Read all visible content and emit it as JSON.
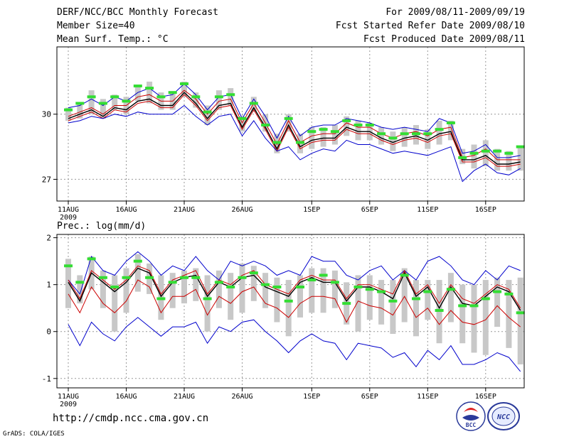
{
  "header": {
    "title": "DERF/NCC/BCC Monthly Forecast",
    "member_size": "Member Size=40",
    "variable": "Mean Surf. Temp.: °C",
    "period": "For 2009/08/11-2009/09/19",
    "fcst_started": "Fcst Started Refer Date 2009/08/10",
    "fcst_produced": "Fcst Produced Date 2009/08/11"
  },
  "footer": {
    "url": "http://cmdp.ncc.cma.gov.cn",
    "grads": "GrADS: COLA/IGES",
    "logo_bcc_text": "BCC",
    "logo_ncc_text": "NCC"
  },
  "colors": {
    "envelope": "#0000cc",
    "spread": "#cc0000",
    "mean": "#000000",
    "observed_bar": "#33dd33",
    "box": "#c8c8c8",
    "grid": "#999999"
  },
  "chart_data": [
    {
      "type": "line",
      "title": "Mean Surf. Temp.: °C",
      "x_tick_labels": [
        "11AUG",
        "16AUG",
        "21AUG",
        "26AUG",
        "1SEP",
        "6SEP",
        "11SEP",
        "16SEP"
      ],
      "x_year_label": "2009",
      "day_index": [
        0,
        1,
        2,
        3,
        4,
        5,
        6,
        7,
        8,
        9,
        10,
        11,
        12,
        13,
        14,
        15,
        16,
        17,
        18,
        19,
        20,
        21,
        22,
        23,
        24,
        25,
        26,
        27,
        28,
        29,
        30,
        31,
        32,
        33,
        34,
        35,
        36,
        37,
        38,
        39
      ],
      "ylim": [
        26.0,
        33.1
      ],
      "y_ticks": [
        27,
        30
      ],
      "grid": true,
      "series": [
        {
          "name": "max",
          "values": [
            30.3,
            30.4,
            30.7,
            30.4,
            30.8,
            30.6,
            31.0,
            31.2,
            30.8,
            30.9,
            31.4,
            30.9,
            30.2,
            30.8,
            30.9,
            29.8,
            30.7,
            29.9,
            28.9,
            29.9,
            29.0,
            29.4,
            29.5,
            29.5,
            29.8,
            29.7,
            29.6,
            29.4,
            29.3,
            29.4,
            29.3,
            29.2,
            29.8,
            29.6,
            28.2,
            28.3,
            28.6,
            28.0,
            28.0,
            28.1
          ]
        },
        {
          "name": "upper",
          "values": [
            29.9,
            30.1,
            30.3,
            30.0,
            30.4,
            30.4,
            30.8,
            30.9,
            30.6,
            30.6,
            31.1,
            30.7,
            30.0,
            30.6,
            30.7,
            29.6,
            30.5,
            29.6,
            28.6,
            29.7,
            28.7,
            29.0,
            29.1,
            29.1,
            29.6,
            29.4,
            29.4,
            29.1,
            28.9,
            29.1,
            29.2,
            29.0,
            29.3,
            29.4,
            28.0,
            28.1,
            28.4,
            27.9,
            27.9,
            27.9
          ]
        },
        {
          "name": "mean",
          "values": [
            29.8,
            30.0,
            30.2,
            29.9,
            30.3,
            30.2,
            30.6,
            30.7,
            30.4,
            30.4,
            31.0,
            30.5,
            29.8,
            30.4,
            30.5,
            29.4,
            30.3,
            29.4,
            28.4,
            29.5,
            28.5,
            28.8,
            28.9,
            28.9,
            29.4,
            29.2,
            29.2,
            28.9,
            28.7,
            28.9,
            29.0,
            28.8,
            29.1,
            29.2,
            27.9,
            27.9,
            28.1,
            27.7,
            27.7,
            27.8
          ]
        },
        {
          "name": "lower",
          "values": [
            29.7,
            29.9,
            30.1,
            29.8,
            30.2,
            30.1,
            30.5,
            30.6,
            30.3,
            30.3,
            30.9,
            30.4,
            29.7,
            30.3,
            30.4,
            29.3,
            30.2,
            29.3,
            28.3,
            29.4,
            28.4,
            28.7,
            28.8,
            28.8,
            29.3,
            29.1,
            29.1,
            28.8,
            28.6,
            28.8,
            28.9,
            28.7,
            29.0,
            29.1,
            27.8,
            27.8,
            28.0,
            27.6,
            27.6,
            27.7
          ]
        },
        {
          "name": "min",
          "values": [
            29.6,
            29.7,
            29.9,
            29.8,
            30.0,
            29.9,
            30.1,
            30.0,
            30.0,
            30.0,
            30.4,
            29.9,
            29.5,
            29.9,
            30.0,
            29.0,
            29.7,
            28.9,
            28.3,
            28.5,
            27.9,
            28.2,
            28.4,
            28.3,
            28.8,
            28.6,
            28.6,
            28.4,
            28.2,
            28.3,
            28.2,
            28.1,
            28.3,
            28.5,
            26.9,
            27.4,
            27.7,
            27.3,
            27.2,
            27.5
          ]
        }
      ],
      "observed": [
        30.2,
        30.5,
        30.8,
        30.5,
        30.8,
        30.6,
        31.3,
        31.2,
        30.8,
        31.0,
        31.4,
        30.8,
        30.1,
        30.8,
        30.9,
        29.8,
        30.5,
        29.5,
        28.7,
        29.8,
        28.7,
        29.2,
        29.3,
        29.2,
        29.7,
        29.5,
        29.5,
        29.1,
        28.9,
        29.1,
        29.1,
        29.1,
        29.3,
        29.6,
        28.0,
        28.2,
        28.3,
        28.3,
        28.2,
        28.5
      ],
      "box_top": [
        30.3,
        30.5,
        31.1,
        30.7,
        30.9,
        30.8,
        31.3,
        31.5,
        31.0,
        31.0,
        31.5,
        31.0,
        30.4,
        31.1,
        31.2,
        29.9,
        30.8,
        30.0,
        29.1,
        30.0,
        29.1,
        29.4,
        29.4,
        29.5,
        29.9,
        29.7,
        29.6,
        29.4,
        29.2,
        29.4,
        29.5,
        29.3,
        29.7,
        29.7,
        28.4,
        28.6,
        28.8,
        28.4,
        28.3,
        28.5
      ],
      "box_bottom": [
        29.7,
        29.8,
        30.0,
        29.8,
        30.2,
        30.0,
        30.6,
        30.5,
        30.2,
        30.2,
        30.8,
        30.3,
        29.5,
        30.2,
        30.4,
        29.2,
        30.1,
        29.2,
        28.2,
        29.2,
        28.2,
        28.4,
        28.5,
        28.6,
        29.0,
        28.8,
        28.8,
        28.6,
        28.3,
        28.5,
        28.6,
        28.4,
        28.6,
        28.8,
        27.7,
        27.5,
        27.6,
        27.4,
        27.4,
        27.4
      ]
    },
    {
      "type": "line",
      "title": "Prec.: log(mm/d)",
      "x_tick_labels": [
        "11AUG",
        "16AUG",
        "21AUG",
        "26AUG",
        "1SEP",
        "6SEP",
        "11SEP",
        "16SEP"
      ],
      "x_year_label": "2009",
      "day_index": [
        0,
        1,
        2,
        3,
        4,
        5,
        6,
        7,
        8,
        9,
        10,
        11,
        12,
        13,
        14,
        15,
        16,
        17,
        18,
        19,
        20,
        21,
        22,
        23,
        24,
        25,
        26,
        27,
        28,
        29,
        30,
        31,
        32,
        33,
        34,
        35,
        36,
        37,
        38,
        39
      ],
      "ylim": [
        -1.2,
        2.07
      ],
      "y_ticks": [
        -1,
        0,
        1,
        2
      ],
      "grid": true,
      "series": [
        {
          "name": "max",
          "values": [
            1.1,
            0.8,
            1.6,
            1.3,
            1.2,
            1.5,
            1.7,
            1.5,
            1.2,
            1.4,
            1.3,
            1.6,
            1.3,
            1.1,
            1.5,
            1.4,
            1.5,
            1.4,
            1.2,
            1.3,
            1.2,
            1.6,
            1.5,
            1.5,
            1.2,
            1.1,
            1.3,
            1.4,
            1.1,
            1.3,
            1.1,
            1.5,
            1.6,
            1.4,
            1.1,
            1.0,
            1.3,
            1.1,
            1.4,
            1.3
          ]
        },
        {
          "name": "upper",
          "values": [
            1.1,
            0.7,
            1.3,
            1.1,
            0.9,
            1.1,
            1.4,
            1.3,
            0.8,
            1.1,
            1.2,
            1.3,
            0.8,
            1.1,
            1.0,
            1.2,
            1.3,
            1.0,
            0.9,
            0.8,
            1.1,
            1.2,
            1.1,
            1.1,
            0.7,
            1.0,
            1.0,
            0.9,
            0.8,
            1.3,
            0.8,
            1.0,
            0.6,
            1.0,
            0.7,
            0.6,
            0.8,
            1.0,
            0.9,
            0.5
          ]
        },
        {
          "name": "mean",
          "values": [
            1.05,
            0.65,
            1.25,
            1.05,
            0.85,
            1.05,
            1.35,
            1.25,
            0.75,
            1.05,
            1.15,
            1.2,
            0.75,
            1.05,
            0.95,
            1.15,
            1.2,
            0.95,
            0.85,
            0.75,
            1.05,
            1.15,
            1.05,
            1.05,
            0.65,
            0.95,
            0.95,
            0.85,
            0.7,
            1.25,
            0.75,
            0.95,
            0.5,
            0.95,
            0.6,
            0.55,
            0.75,
            0.95,
            0.85,
            0.45
          ]
        },
        {
          "name": "lower",
          "values": [
            0.8,
            0.4,
            0.95,
            0.6,
            0.4,
            0.65,
            1.1,
            0.95,
            0.4,
            0.75,
            0.75,
            0.9,
            0.35,
            0.75,
            0.6,
            0.85,
            0.95,
            0.6,
            0.5,
            0.3,
            0.6,
            0.75,
            0.75,
            0.7,
            0.2,
            0.65,
            0.55,
            0.5,
            0.35,
            0.75,
            0.3,
            0.5,
            0.15,
            0.45,
            0.2,
            0.15,
            0.25,
            0.55,
            0.3,
            0.1
          ]
        },
        {
          "name": "min",
          "values": [
            0.15,
            -0.3,
            0.2,
            -0.05,
            -0.2,
            0.1,
            0.3,
            0.1,
            -0.1,
            0.1,
            0.1,
            0.2,
            -0.25,
            0.1,
            0.0,
            0.2,
            0.25,
            0.0,
            -0.2,
            -0.45,
            -0.2,
            -0.05,
            -0.2,
            -0.25,
            -0.6,
            -0.25,
            -0.3,
            -0.35,
            -0.55,
            -0.45,
            -0.75,
            -0.4,
            -0.6,
            -0.3,
            -0.7,
            -0.7,
            -0.6,
            -0.45,
            -0.55,
            -0.85
          ]
        }
      ],
      "observed": [
        1.4,
        1.05,
        1.55,
        1.15,
        0.95,
        1.15,
        1.5,
        1.15,
        0.7,
        1.05,
        1.15,
        1.15,
        0.7,
        1.05,
        0.95,
        1.15,
        1.25,
        1.0,
        0.95,
        0.65,
        0.95,
        1.1,
        1.2,
        1.05,
        0.6,
        0.95,
        0.9,
        0.85,
        0.65,
        1.2,
        0.7,
        0.85,
        0.45,
        0.9,
        0.55,
        0.55,
        0.7,
        0.85,
        0.8,
        0.4
      ],
      "box_top": [
        1.55,
        1.2,
        1.6,
        1.3,
        1.2,
        1.35,
        1.65,
        1.45,
        1.2,
        1.25,
        1.3,
        1.35,
        1.2,
        1.3,
        1.25,
        1.45,
        1.4,
        1.25,
        1.15,
        1.1,
        1.2,
        1.35,
        1.35,
        1.3,
        1.05,
        1.2,
        1.2,
        1.1,
        1.1,
        1.35,
        1.1,
        1.1,
        1.1,
        1.25,
        1.0,
        1.0,
        1.1,
        1.15,
        1.1,
        1.15
      ],
      "box_bottom": [
        0.5,
        0.6,
        0.9,
        0.5,
        0.0,
        0.4,
        0.85,
        0.8,
        0.25,
        0.5,
        0.6,
        0.65,
        0.0,
        0.5,
        0.25,
        0.4,
        0.65,
        0.5,
        0.2,
        -0.1,
        0.3,
        0.4,
        0.4,
        0.5,
        0.15,
        0.0,
        0.25,
        0.15,
        -0.05,
        0.2,
        -0.1,
        0.25,
        -0.25,
        0.2,
        -0.25,
        -0.45,
        -0.5,
        0.1,
        -0.35,
        -0.7
      ]
    }
  ]
}
